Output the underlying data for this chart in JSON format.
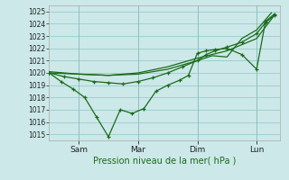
{
  "title": "Pression niveau de la mer( hPa )",
  "bg_color": "#cce8e8",
  "grid_color": "#99cccc",
  "line_color": "#1a6b1a",
  "ylim": [
    1014.5,
    1025.5
  ],
  "yticks": [
    1015,
    1016,
    1017,
    1018,
    1019,
    1020,
    1021,
    1022,
    1023,
    1024,
    1025
  ],
  "xlim": [
    0,
    7.8
  ],
  "day_positions": [
    1,
    3,
    5,
    7
  ],
  "day_labels": [
    "Sam",
    "Mar",
    "Dim",
    "Lun"
  ],
  "line1_x": [
    0,
    0.4,
    0.8,
    1.2,
    1.6,
    2.0,
    2.4,
    2.8,
    3.2,
    3.6,
    4.0,
    4.4,
    4.7,
    5.0,
    5.3,
    5.6,
    6.0,
    6.5,
    7.0,
    7.3,
    7.6
  ],
  "line1_y": [
    1020.0,
    1019.3,
    1018.7,
    1018.0,
    1016.4,
    1014.8,
    1017.0,
    1016.7,
    1017.1,
    1018.5,
    1019.0,
    1019.4,
    1019.8,
    1021.6,
    1021.8,
    1021.9,
    1022.0,
    1021.5,
    1020.3,
    1024.2,
    1024.8
  ],
  "line1_markers": true,
  "line2_x": [
    0,
    0.5,
    1.0,
    1.5,
    2.0,
    2.5,
    3.0,
    3.5,
    4.0,
    4.5,
    5.0,
    5.3,
    5.6,
    6.0,
    6.5,
    7.0,
    7.3,
    7.6
  ],
  "line2_y": [
    1020.0,
    1019.7,
    1019.5,
    1019.3,
    1019.2,
    1019.1,
    1019.3,
    1019.6,
    1020.0,
    1020.5,
    1021.0,
    1021.5,
    1021.8,
    1022.1,
    1022.5,
    1023.2,
    1024.1,
    1024.7
  ],
  "line2_markers": true,
  "line3_x": [
    0,
    1.0,
    2.0,
    3.0,
    4.0,
    5.0,
    5.5,
    6.0,
    6.5,
    7.0,
    7.5
  ],
  "line3_y": [
    1020.0,
    1019.9,
    1019.8,
    1019.9,
    1020.3,
    1021.0,
    1021.4,
    1021.3,
    1022.8,
    1023.5,
    1024.9
  ],
  "line3_markers": false,
  "line4_x": [
    0,
    1.0,
    2.0,
    3.0,
    4.0,
    5.0,
    6.0,
    7.0,
    7.6
  ],
  "line4_y": [
    1020.1,
    1019.9,
    1019.8,
    1020.0,
    1020.5,
    1021.2,
    1021.8,
    1022.8,
    1024.7
  ],
  "line4_markers": false
}
